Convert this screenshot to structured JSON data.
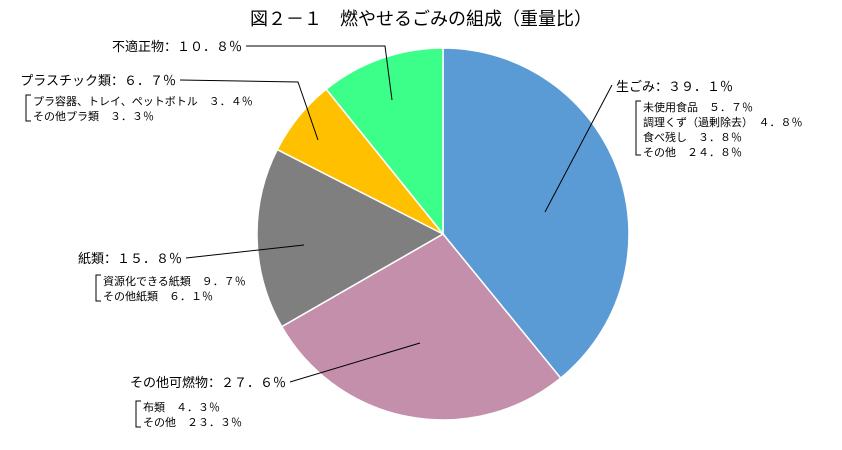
{
  "chart_data": {
    "type": "pie",
    "title": "図２－１　燃やせるごみの組成（重量比）",
    "slices": [
      {
        "label": "生ごみ：３９．１％",
        "value": 39.1,
        "color": "#5b9bd5",
        "breakdown": [
          "未使用食品　５．７％",
          "調理くず（過剰除去）　４．８％",
          "食べ残し　３．８％",
          "その他　２４．８％"
        ]
      },
      {
        "label": "その他可燃物：２７．６％",
        "value": 27.6,
        "color": "#c48fab",
        "breakdown": [
          "布類　４．３％",
          "その他　２３．３％"
        ]
      },
      {
        "label": "紙類：１５．８％",
        "value": 15.8,
        "color": "#7f7f7f",
        "breakdown": [
          "資源化できる紙類　９．７％",
          "その他紙類　６．１％"
        ]
      },
      {
        "label": "プラスチック類：６．７％",
        "value": 6.7,
        "color": "#ffc000",
        "breakdown": [
          "プラ容器、トレイ、ペットボトル　３．４％",
          "その他プラ類　３．３％"
        ]
      },
      {
        "label": "不適正物：１０．８％",
        "value": 10.8,
        "color": "#3cff8a",
        "breakdown": []
      }
    ]
  }
}
